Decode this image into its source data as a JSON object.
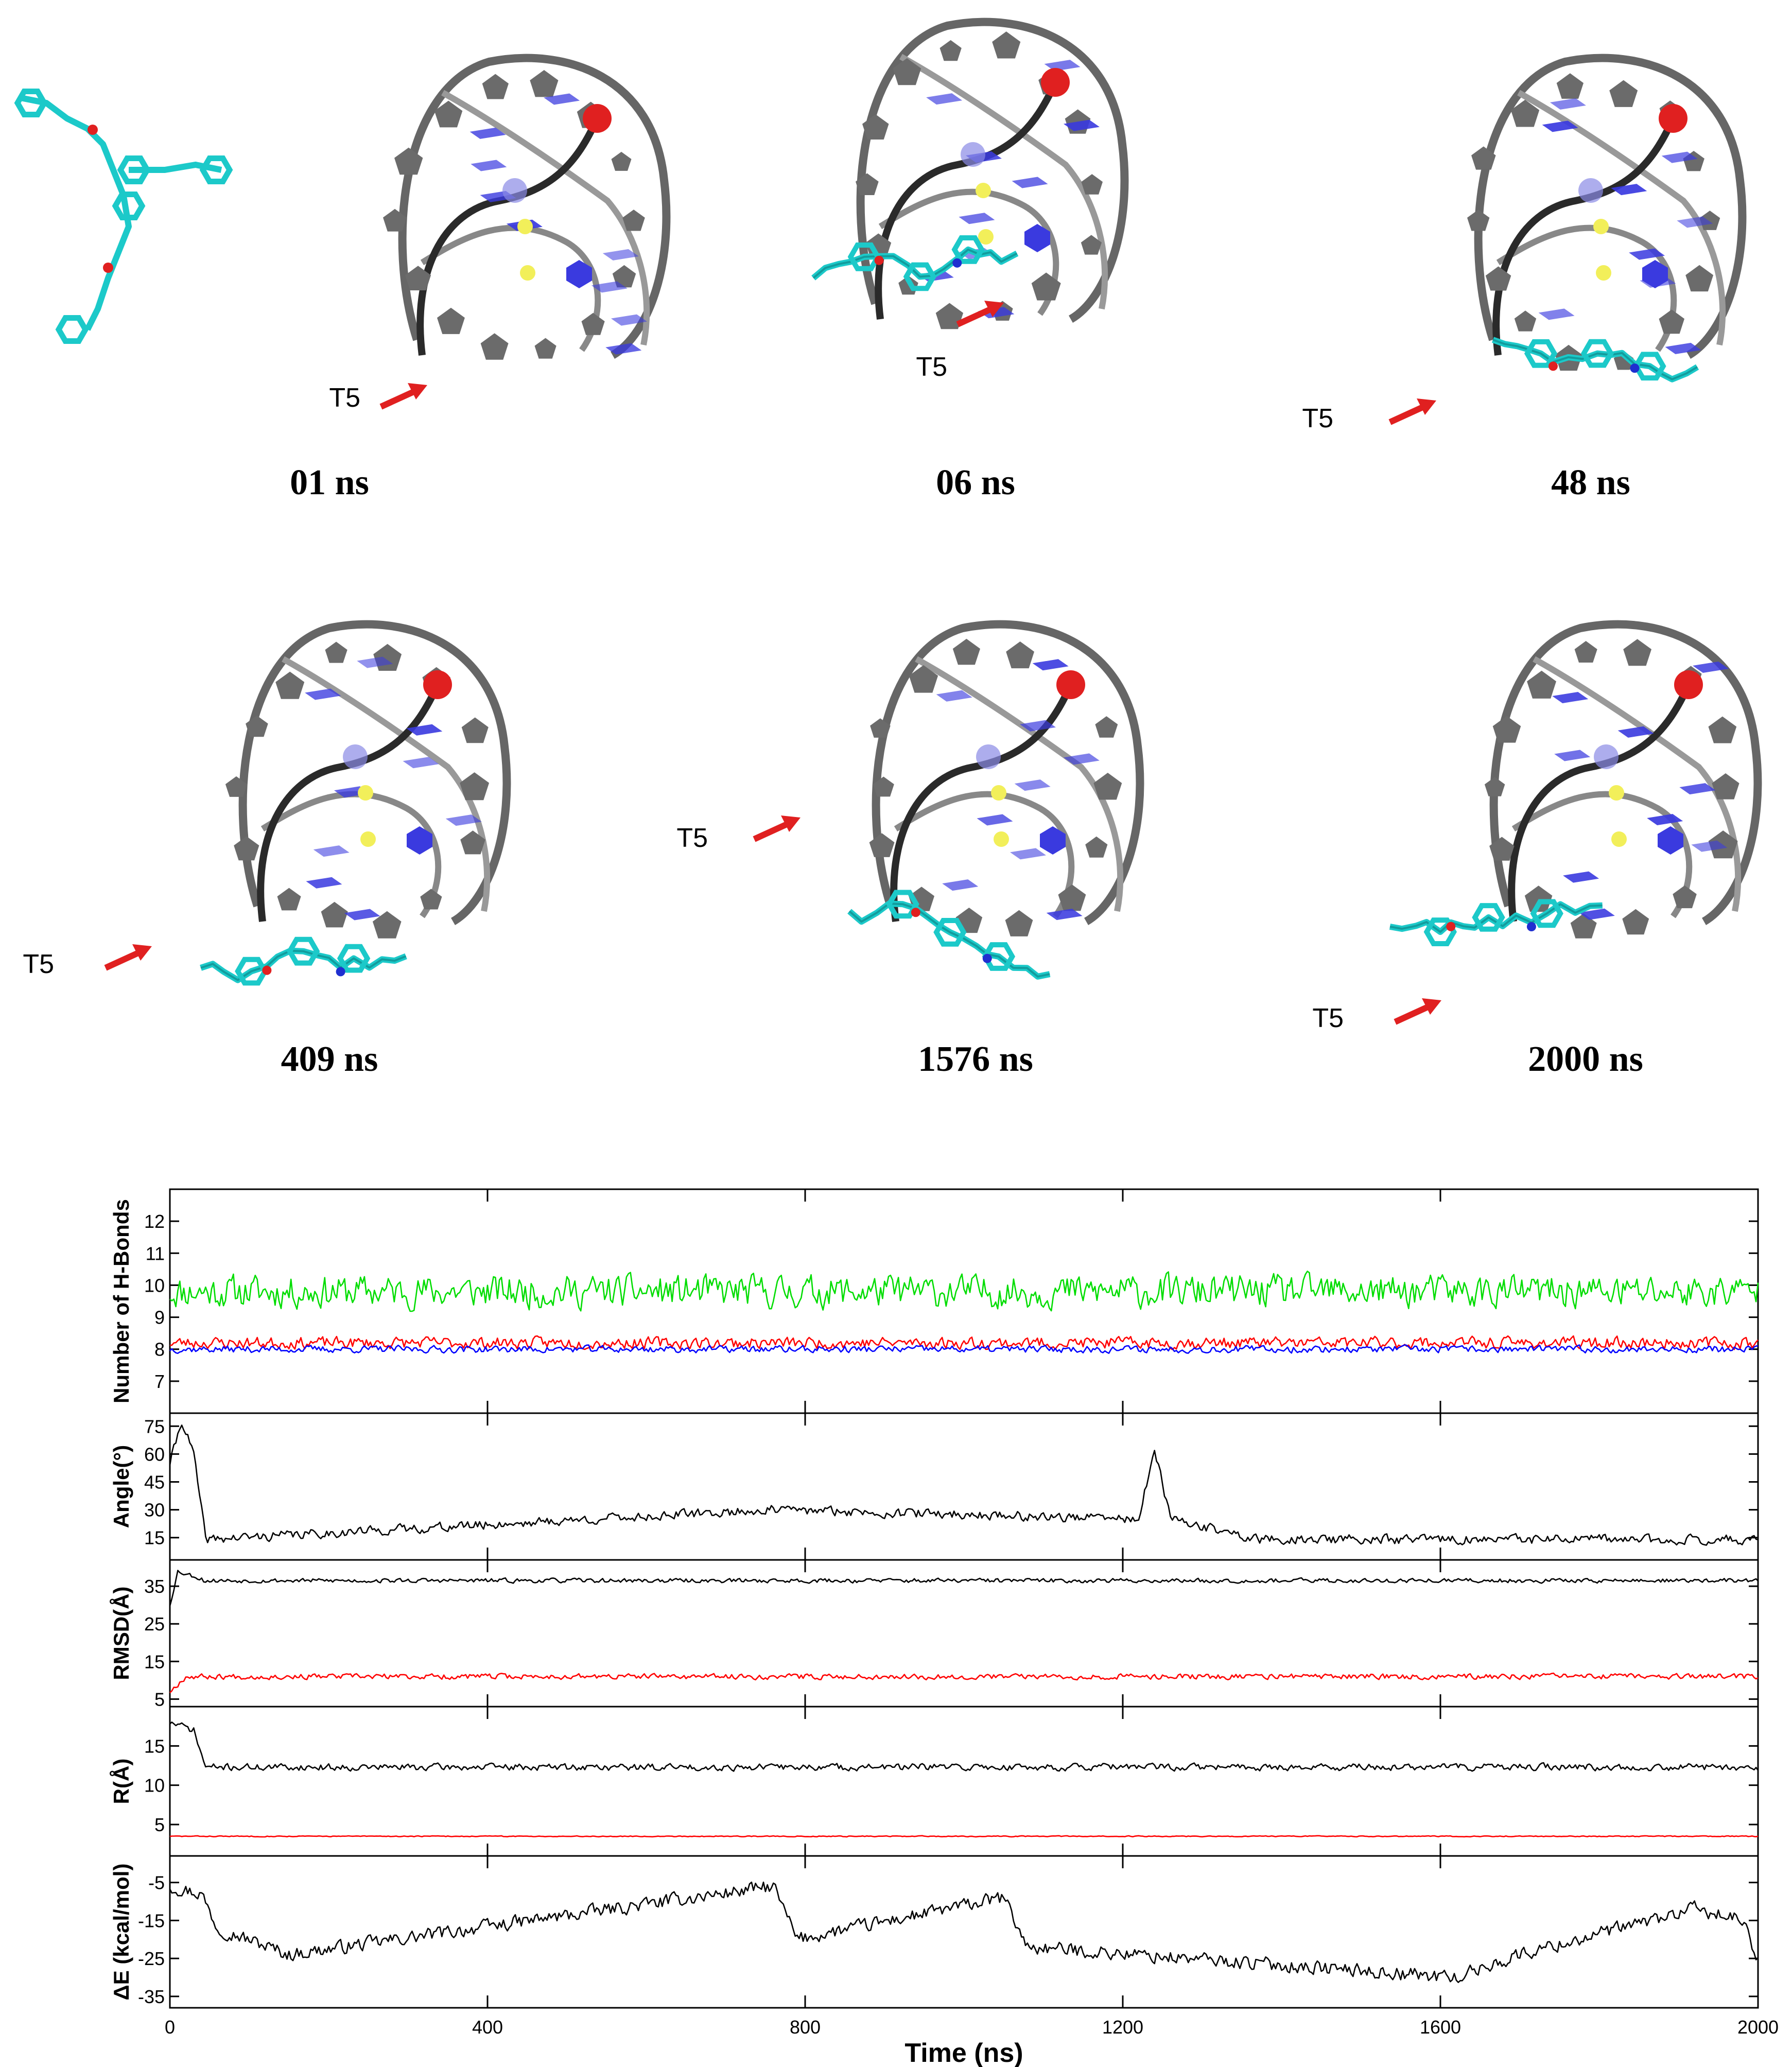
{
  "snapshots": [
    {
      "time": "01 ns",
      "t5": "T5"
    },
    {
      "time": "06 ns",
      "t5": "T5"
    },
    {
      "time": "48 ns",
      "t5": "T5"
    },
    {
      "time": "409 ns",
      "t5": "T5"
    },
    {
      "time": "1576 ns",
      "t5": "T5"
    },
    {
      "time": "2000 ns",
      "t5": "T5"
    }
  ],
  "colors": {
    "backbone": "#555555",
    "base": "#3a3adf",
    "ligand": "#1cc9c9",
    "ion": "#f2ef5a",
    "marker": "#e02020",
    "green_series": "#00dd00",
    "red_series": "#ff0000",
    "blue_series": "#0000ff",
    "black_series": "#000000"
  },
  "chart_data": {
    "type": "line",
    "xlabel": "Time (ns)",
    "xlim": [
      0,
      2000
    ],
    "xticks": [
      "0",
      "400",
      "800",
      "1200",
      "1600",
      "2000"
    ],
    "panels": [
      {
        "ylabel": "Number of H-Bonds",
        "ylim": [
          6,
          13
        ],
        "yticks": [
          "7",
          "8",
          "9",
          "10",
          "11",
          "12"
        ],
        "series": [
          {
            "color": "green",
            "mean": 9.8,
            "amp": 0.7,
            "seed": 11
          },
          {
            "color": "red",
            "mean": 8.2,
            "amp": 0.25,
            "seed": 23
          },
          {
            "color": "blue",
            "mean": 8.0,
            "amp": 0.15,
            "seed": 37
          }
        ]
      },
      {
        "ylabel": "Angle(°)",
        "ylim": [
          3,
          82
        ],
        "yticks": [
          "15",
          "30",
          "45",
          "60",
          "75"
        ],
        "series": [
          {
            "color": "black",
            "mean": 14,
            "amp": 3.5,
            "seed": 41,
            "events": [
              [
                0,
                55
              ],
              [
                15,
                78
              ],
              [
                30,
                60
              ],
              [
                45,
                14
              ],
              [
                760,
                30
              ],
              [
                1220,
                25
              ],
              [
                1240,
                62
              ],
              [
                1260,
                25
              ],
              [
                1360,
                15
              ]
            ]
          }
        ]
      },
      {
        "ylabel": "RMSD(Å)",
        "ylim": [
          3,
          42
        ],
        "yticks": [
          "5",
          "15",
          "25",
          "35"
        ],
        "series": [
          {
            "color": "black",
            "mean": 36.5,
            "amp": 0.8,
            "seed": 53,
            "events": [
              [
                0,
                30
              ],
              [
                10,
                39
              ],
              [
                40,
                37
              ]
            ]
          },
          {
            "color": "red",
            "mean": 11,
            "amp": 1.0,
            "seed": 67,
            "events": [
              [
                0,
                7
              ],
              [
                20,
                11
              ]
            ]
          }
        ]
      },
      {
        "ylabel": "R(Å)",
        "ylim": [
          1,
          20
        ],
        "yticks": [
          "5",
          "10",
          "15"
        ],
        "series": [
          {
            "color": "black",
            "mean": 12.3,
            "amp": 0.6,
            "seed": 71,
            "events": [
              [
                0,
                18
              ],
              [
                30,
                17
              ],
              [
                45,
                12.3
              ]
            ]
          },
          {
            "color": "red",
            "mean": 3.5,
            "amp": 0.08,
            "seed": 83
          }
        ]
      },
      {
        "ylabel": "ΔE (kcal/mol)",
        "ylim": [
          -38,
          2
        ],
        "yticks": [
          "-5",
          "-15",
          "-25",
          "-35"
        ],
        "series": [
          {
            "color": "black",
            "mean": -24,
            "amp": 2.5,
            "seed": 97,
            "events": [
              [
                0,
                -6
              ],
              [
                40,
                -8
              ],
              [
                60,
                -17
              ],
              [
                150,
                -24
              ],
              [
                760,
                -6
              ],
              [
                790,
                -20
              ],
              [
                1050,
                -9
              ],
              [
                1080,
                -22
              ],
              [
                1620,
                -30
              ],
              [
                1700,
                -24
              ],
              [
                1920,
                -12
              ],
              [
                1980,
                -15
              ],
              [
                2000,
                -26
              ]
            ]
          }
        ]
      }
    ]
  }
}
